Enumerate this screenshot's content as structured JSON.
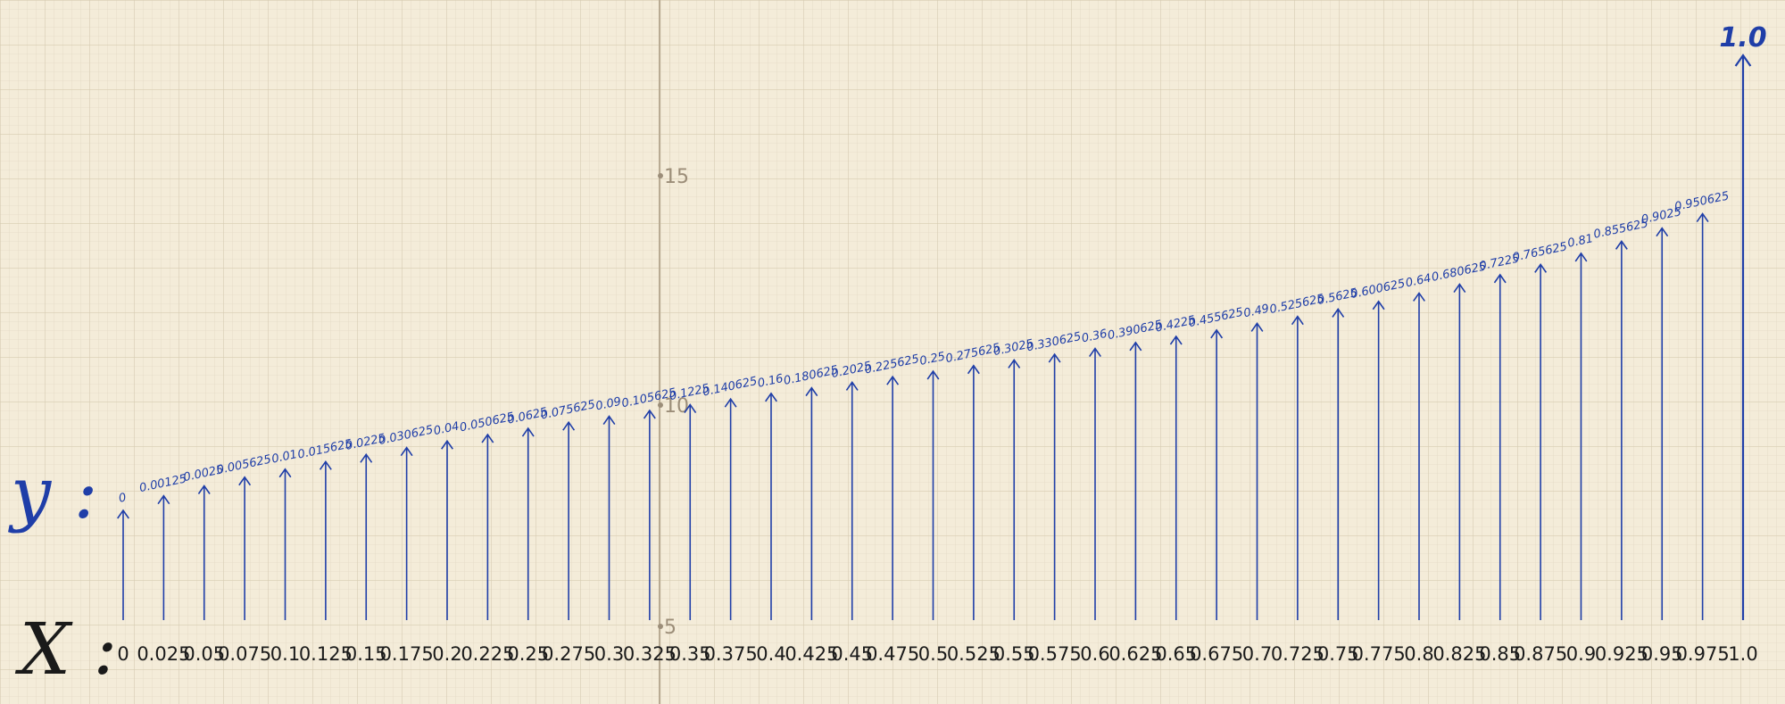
{
  "row_labels": {
    "x_label": "X :",
    "y_label": "y :"
  },
  "paper_markers": [
    "15",
    "10",
    "5"
  ],
  "pairs": [
    {
      "x": "0",
      "y": "0"
    },
    {
      "x": "0.025",
      "y": "0.00125"
    },
    {
      "x": "0.05",
      "y": "0.0025"
    },
    {
      "x": "0.075",
      "y": "0.005625"
    },
    {
      "x": "0.1",
      "y": "0.01"
    },
    {
      "x": "0.125",
      "y": "0.015625"
    },
    {
      "x": "0.15",
      "y": "0.0225"
    },
    {
      "x": "0.175",
      "y": "0.030625"
    },
    {
      "x": "0.2",
      "y": "0.04"
    },
    {
      "x": "0.225",
      "y": "0.050625"
    },
    {
      "x": "0.25",
      "y": "0.0625"
    },
    {
      "x": "0.275",
      "y": "0.075625"
    },
    {
      "x": "0.3",
      "y": "0.09"
    },
    {
      "x": "0.325",
      "y": "0.105625"
    },
    {
      "x": "0.35",
      "y": "0.1225"
    },
    {
      "x": "0.375",
      "y": "0.140625"
    },
    {
      "x": "0.4",
      "y": "0.16"
    },
    {
      "x": "0.425",
      "y": "0.180625"
    },
    {
      "x": "0.45",
      "y": "0.2025"
    },
    {
      "x": "0.475",
      "y": "0.225625"
    },
    {
      "x": "0.5",
      "y": "0.25"
    },
    {
      "x": "0.525",
      "y": "0.275625"
    },
    {
      "x": "0.55",
      "y": "0.3025"
    },
    {
      "x": "0.575",
      "y": "0.330625"
    },
    {
      "x": "0.6",
      "y": "0.36"
    },
    {
      "x": "0.625",
      "y": "0.390625"
    },
    {
      "x": "0.65",
      "y": "0.4225"
    },
    {
      "x": "0.675",
      "y": "0.455625"
    },
    {
      "x": "0.7",
      "y": "0.49"
    },
    {
      "x": "0.725",
      "y": "0.525625"
    },
    {
      "x": "0.75",
      "y": "0.5625"
    },
    {
      "x": "0.775",
      "y": "0.600625"
    },
    {
      "x": "0.8",
      "y": "0.64"
    },
    {
      "x": "0.825",
      "y": "0.680625"
    },
    {
      "x": "0.85",
      "y": "0.7225"
    },
    {
      "x": "0.875",
      "y": "0.765625"
    },
    {
      "x": "0.9",
      "y": "0.81"
    },
    {
      "x": "0.925",
      "y": "0.855625"
    },
    {
      "x": "0.95",
      "y": "0.9025"
    },
    {
      "x": "0.975",
      "y": "0.950625"
    },
    {
      "x": "1.0",
      "y": "1.0"
    }
  ],
  "colors": {
    "paper": "#f4ecd9",
    "grid": "#dcd3be",
    "ink_blue": "#1f3ea8",
    "ink_black": "#1a1a1a"
  }
}
